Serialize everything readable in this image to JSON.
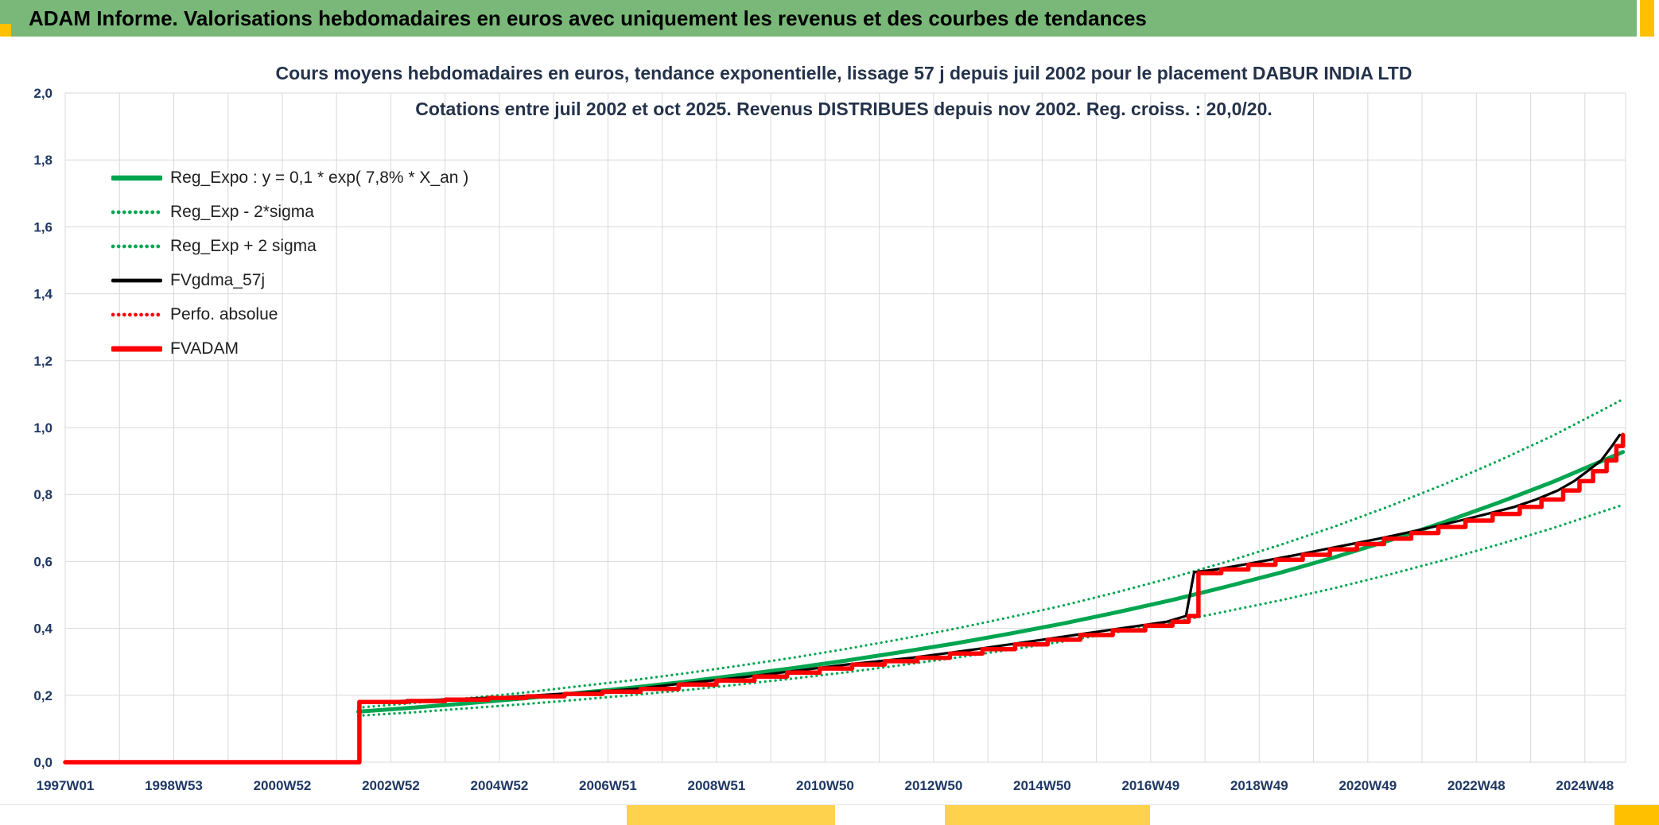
{
  "header": {
    "title": "ADAM Informe. Valorisations hebdomadaires en euros avec uniquement les revenus et des courbes de tendances"
  },
  "colors": {
    "header_bg": "#79B879",
    "accent_yellow": "#FFC000",
    "accent_yellow_light": "#FFD24D",
    "axis_labels": "#1F3864",
    "grid": "#D9D9D9",
    "green_series": "#00A550",
    "red_series": "#FE0000",
    "black_series": "#000000"
  },
  "chart_data": {
    "type": "line",
    "title_line1": "Cours moyens hebdomadaires en euros, tendance exponentielle, lissage 57 j depuis juil 2002 pour le placement DABUR INDIA LTD",
    "title_line2": "Cotations entre juil 2002 et oct 2025. Revenus DISTRIBUES depuis nov 2002. Reg. croiss. : 20,0/20.",
    "legend_position": "top-left-inside",
    "grid": true,
    "x_axis": {
      "tick_labels": [
        "1997W01",
        "1998W53",
        "2000W52",
        "2002W52",
        "2004W52",
        "2006W51",
        "2008W51",
        "2010W50",
        "2012W50",
        "2014W50",
        "2016W49",
        "2018W49",
        "2020W49",
        "2022W48",
        "2024W48"
      ],
      "tick_years": [
        1997,
        1999,
        2001,
        2003,
        2005,
        2007,
        2009,
        2011,
        2013,
        2015,
        2017,
        2019,
        2021,
        2023,
        2025
      ],
      "range_years": [
        1997.0,
        2025.75
      ],
      "minor_grid_step_years": 1
    },
    "y_axis": {
      "tick_labels": [
        "0,0",
        "0,2",
        "0,4",
        "0,6",
        "0,8",
        "1,0",
        "1,2",
        "1,4",
        "1,6",
        "1,8",
        "2,0"
      ],
      "tick_values": [
        0,
        0.2,
        0.4,
        0.6,
        0.8,
        1.0,
        1.2,
        1.4,
        1.6,
        1.8,
        2.0
      ],
      "range": [
        0,
        2.0
      ]
    },
    "series": [
      {
        "name": "Reg_Expo : y = 0,1 * exp( 7,8% *  X_an )",
        "color": "#00A550",
        "style": "solid",
        "width": 5,
        "interpolation": "linear",
        "points": [
          [
            2002.4,
            0.151
          ],
          [
            2003.4,
            0.163
          ],
          [
            2004.4,
            0.176
          ],
          [
            2005.4,
            0.19
          ],
          [
            2006.4,
            0.206
          ],
          [
            2007.4,
            0.222
          ],
          [
            2008.4,
            0.24
          ],
          [
            2009.4,
            0.26
          ],
          [
            2010.4,
            0.281
          ],
          [
            2011.4,
            0.304
          ],
          [
            2012.4,
            0.329
          ],
          [
            2013.4,
            0.355
          ],
          [
            2014.4,
            0.384
          ],
          [
            2015.4,
            0.415
          ],
          [
            2016.4,
            0.449
          ],
          [
            2017.4,
            0.485
          ],
          [
            2018.4,
            0.525
          ],
          [
            2019.4,
            0.567
          ],
          [
            2020.4,
            0.613
          ],
          [
            2021.4,
            0.663
          ],
          [
            2022.4,
            0.717
          ],
          [
            2023.4,
            0.775
          ],
          [
            2024.4,
            0.837
          ],
          [
            2025.4,
            0.906
          ],
          [
            2025.7,
            0.927
          ]
        ]
      },
      {
        "name": "Reg_Exp - 2*sigma",
        "color": "#00A550",
        "style": "dotted",
        "width": 3.2,
        "interpolation": "linear",
        "points": [
          [
            2002.4,
            0.139
          ],
          [
            2003.4,
            0.149
          ],
          [
            2004.4,
            0.161
          ],
          [
            2005.4,
            0.173
          ],
          [
            2006.4,
            0.186
          ],
          [
            2007.4,
            0.2
          ],
          [
            2008.4,
            0.215
          ],
          [
            2009.4,
            0.232
          ],
          [
            2010.4,
            0.25
          ],
          [
            2011.4,
            0.269
          ],
          [
            2012.4,
            0.29
          ],
          [
            2013.4,
            0.312
          ],
          [
            2014.4,
            0.336
          ],
          [
            2015.4,
            0.361
          ],
          [
            2016.4,
            0.389
          ],
          [
            2017.4,
            0.418
          ],
          [
            2018.4,
            0.451
          ],
          [
            2019.4,
            0.484
          ],
          [
            2020.4,
            0.521
          ],
          [
            2021.4,
            0.561
          ],
          [
            2022.4,
            0.604
          ],
          [
            2023.4,
            0.65
          ],
          [
            2024.4,
            0.699
          ],
          [
            2025.4,
            0.753
          ],
          [
            2025.7,
            0.769
          ]
        ]
      },
      {
        "name": "Reg_Exp + 2 sigma",
        "color": "#00A550",
        "style": "dotted",
        "width": 3.2,
        "interpolation": "linear",
        "points": [
          [
            2002.4,
            0.163
          ],
          [
            2003.4,
            0.177
          ],
          [
            2004.4,
            0.191
          ],
          [
            2005.4,
            0.207
          ],
          [
            2006.4,
            0.226
          ],
          [
            2007.4,
            0.244
          ],
          [
            2008.4,
            0.265
          ],
          [
            2009.4,
            0.288
          ],
          [
            2010.4,
            0.312
          ],
          [
            2011.4,
            0.339
          ],
          [
            2012.4,
            0.368
          ],
          [
            2013.4,
            0.399
          ],
          [
            2014.4,
            0.433
          ],
          [
            2015.4,
            0.469
          ],
          [
            2016.4,
            0.509
          ],
          [
            2017.4,
            0.552
          ],
          [
            2018.4,
            0.599
          ],
          [
            2019.4,
            0.65
          ],
          [
            2020.4,
            0.705
          ],
          [
            2021.4,
            0.765
          ],
          [
            2022.4,
            0.83
          ],
          [
            2023.4,
            0.9
          ],
          [
            2024.4,
            0.975
          ],
          [
            2025.4,
            1.059
          ],
          [
            2025.7,
            1.085
          ]
        ]
      },
      {
        "name": "FVgdma_57j",
        "color": "#000000",
        "style": "solid",
        "width": 3.2,
        "interpolation": "linear",
        "points": [
          [
            2002.42,
            0.18
          ],
          [
            2003.2,
            0.183
          ],
          [
            2003.9,
            0.187
          ],
          [
            2004.7,
            0.192
          ],
          [
            2005.4,
            0.197
          ],
          [
            2006.1,
            0.204
          ],
          [
            2006.8,
            0.211
          ],
          [
            2007.5,
            0.219
          ],
          [
            2008.2,
            0.232
          ],
          [
            2008.9,
            0.244
          ],
          [
            2009.6,
            0.256
          ],
          [
            2010.2,
            0.268
          ],
          [
            2010.8,
            0.28
          ],
          [
            2011.4,
            0.292
          ],
          [
            2012.0,
            0.302
          ],
          [
            2012.6,
            0.312
          ],
          [
            2013.2,
            0.325
          ],
          [
            2013.8,
            0.338
          ],
          [
            2014.4,
            0.352
          ],
          [
            2015.0,
            0.366
          ],
          [
            2015.6,
            0.38
          ],
          [
            2016.2,
            0.394
          ],
          [
            2016.8,
            0.408
          ],
          [
            2017.3,
            0.42
          ],
          [
            2017.65,
            0.437
          ],
          [
            2017.8,
            0.568
          ],
          [
            2018.2,
            0.576
          ],
          [
            2018.7,
            0.59
          ],
          [
            2019.2,
            0.605
          ],
          [
            2019.7,
            0.62
          ],
          [
            2020.2,
            0.636
          ],
          [
            2020.7,
            0.652
          ],
          [
            2021.2,
            0.668
          ],
          [
            2021.7,
            0.685
          ],
          [
            2022.2,
            0.703
          ],
          [
            2022.7,
            0.722
          ],
          [
            2023.2,
            0.742
          ],
          [
            2023.7,
            0.763
          ],
          [
            2024.1,
            0.785
          ],
          [
            2024.5,
            0.812
          ],
          [
            2024.8,
            0.84
          ],
          [
            2025.05,
            0.87
          ],
          [
            2025.3,
            0.902
          ],
          [
            2025.5,
            0.945
          ],
          [
            2025.64,
            0.978
          ]
        ]
      },
      {
        "name": "Perfo. absolue",
        "color": "#FE0000",
        "style": "dotted",
        "width": 3.2,
        "interpolation": "step",
        "points": [
          [
            1997.0,
            0
          ],
          [
            2002.42,
            0.18
          ],
          [
            2003.3,
            0.183
          ],
          [
            2004.0,
            0.187
          ],
          [
            2004.8,
            0.192
          ],
          [
            2005.5,
            0.197
          ],
          [
            2006.2,
            0.204
          ],
          [
            2006.9,
            0.211
          ],
          [
            2007.6,
            0.219
          ],
          [
            2008.3,
            0.232
          ],
          [
            2009.0,
            0.244
          ],
          [
            2009.7,
            0.256
          ],
          [
            2010.3,
            0.268
          ],
          [
            2010.9,
            0.28
          ],
          [
            2011.5,
            0.292
          ],
          [
            2012.1,
            0.302
          ],
          [
            2012.7,
            0.312
          ],
          [
            2013.3,
            0.325
          ],
          [
            2013.9,
            0.338
          ],
          [
            2014.5,
            0.352
          ],
          [
            2015.1,
            0.366
          ],
          [
            2015.7,
            0.38
          ],
          [
            2016.3,
            0.394
          ],
          [
            2016.9,
            0.408
          ],
          [
            2017.4,
            0.42
          ],
          [
            2017.7,
            0.437
          ],
          [
            2017.88,
            0.565
          ],
          [
            2018.3,
            0.576
          ],
          [
            2018.8,
            0.59
          ],
          [
            2019.3,
            0.605
          ],
          [
            2019.8,
            0.62
          ],
          [
            2020.3,
            0.636
          ],
          [
            2020.8,
            0.652
          ],
          [
            2021.3,
            0.668
          ],
          [
            2021.8,
            0.685
          ],
          [
            2022.3,
            0.703
          ],
          [
            2022.8,
            0.722
          ],
          [
            2023.3,
            0.742
          ],
          [
            2023.8,
            0.763
          ],
          [
            2024.2,
            0.785
          ],
          [
            2024.6,
            0.812
          ],
          [
            2024.9,
            0.84
          ],
          [
            2025.15,
            0.87
          ],
          [
            2025.4,
            0.902
          ],
          [
            2025.58,
            0.945
          ],
          [
            2025.7,
            0.978
          ]
        ]
      },
      {
        "name": "FVADAM",
        "color": "#FE0000",
        "style": "solid",
        "width": 5.5,
        "interpolation": "step",
        "points": [
          [
            1997.0,
            0
          ],
          [
            2002.42,
            0.18
          ],
          [
            2003.3,
            0.183
          ],
          [
            2004.0,
            0.187
          ],
          [
            2004.8,
            0.192
          ],
          [
            2005.5,
            0.197
          ],
          [
            2006.2,
            0.204
          ],
          [
            2006.9,
            0.211
          ],
          [
            2007.6,
            0.219
          ],
          [
            2008.3,
            0.232
          ],
          [
            2009.0,
            0.244
          ],
          [
            2009.7,
            0.256
          ],
          [
            2010.3,
            0.268
          ],
          [
            2010.9,
            0.28
          ],
          [
            2011.5,
            0.292
          ],
          [
            2012.1,
            0.302
          ],
          [
            2012.7,
            0.312
          ],
          [
            2013.3,
            0.325
          ],
          [
            2013.9,
            0.338
          ],
          [
            2014.5,
            0.352
          ],
          [
            2015.1,
            0.366
          ],
          [
            2015.7,
            0.38
          ],
          [
            2016.3,
            0.394
          ],
          [
            2016.9,
            0.408
          ],
          [
            2017.4,
            0.42
          ],
          [
            2017.7,
            0.437
          ],
          [
            2017.88,
            0.565
          ],
          [
            2018.3,
            0.576
          ],
          [
            2018.8,
            0.59
          ],
          [
            2019.3,
            0.605
          ],
          [
            2019.8,
            0.62
          ],
          [
            2020.3,
            0.636
          ],
          [
            2020.8,
            0.652
          ],
          [
            2021.3,
            0.668
          ],
          [
            2021.8,
            0.685
          ],
          [
            2022.3,
            0.703
          ],
          [
            2022.8,
            0.722
          ],
          [
            2023.3,
            0.742
          ],
          [
            2023.8,
            0.763
          ],
          [
            2024.2,
            0.785
          ],
          [
            2024.6,
            0.812
          ],
          [
            2024.9,
            0.84
          ],
          [
            2025.15,
            0.87
          ],
          [
            2025.4,
            0.902
          ],
          [
            2025.58,
            0.945
          ],
          [
            2025.7,
            0.978
          ]
        ]
      }
    ]
  }
}
